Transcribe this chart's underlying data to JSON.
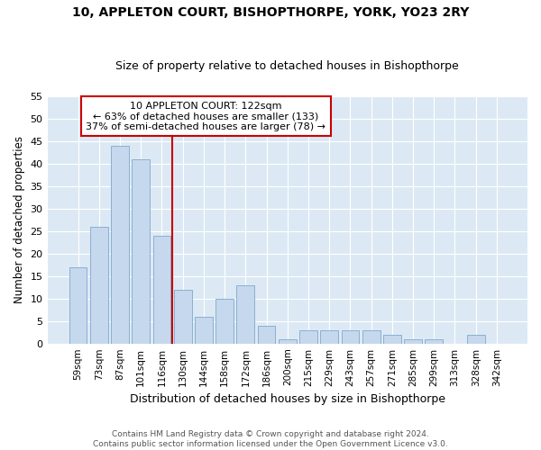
{
  "title": "10, APPLETON COURT, BISHOPTHORPE, YORK, YO23 2RY",
  "subtitle": "Size of property relative to detached houses in Bishopthorpe",
  "xlabel": "Distribution of detached houses by size in Bishopthorpe",
  "ylabel": "Number of detached properties",
  "categories": [
    "59sqm",
    "73sqm",
    "87sqm",
    "101sqm",
    "116sqm",
    "130sqm",
    "144sqm",
    "158sqm",
    "172sqm",
    "186sqm",
    "200sqm",
    "215sqm",
    "229sqm",
    "243sqm",
    "257sqm",
    "271sqm",
    "285sqm",
    "299sqm",
    "313sqm",
    "328sqm",
    "342sqm"
  ],
  "values": [
    17,
    26,
    44,
    41,
    24,
    12,
    6,
    10,
    13,
    4,
    1,
    3,
    3,
    3,
    3,
    2,
    1,
    1,
    0,
    2,
    0
  ],
  "bar_color": "#c5d8ed",
  "bar_edge_color": "#8ab0d0",
  "property_line_x": 4.5,
  "annotation_line1": "10 APPLETON COURT: 122sqm",
  "annotation_line2": "← 63% of detached houses are smaller (133)",
  "annotation_line3": "37% of semi-detached houses are larger (78) →",
  "annotation_box_color": "#ffffff",
  "annotation_box_edge_color": "#cc0000",
  "red_line_color": "#cc0000",
  "ylim": [
    0,
    55
  ],
  "yticks": [
    0,
    5,
    10,
    15,
    20,
    25,
    30,
    35,
    40,
    45,
    50,
    55
  ],
  "footer_line1": "Contains HM Land Registry data © Crown copyright and database right 2024.",
  "footer_line2": "Contains public sector information licensed under the Open Government Licence v3.0.",
  "plot_bg_color": "#dce9f5",
  "fig_bg_color": "#ffffff",
  "grid_color": "#ffffff"
}
